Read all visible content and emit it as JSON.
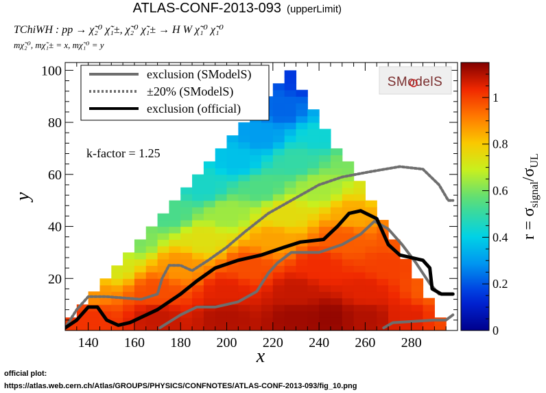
{
  "chart_data": {
    "type": "heatmap",
    "title": "ATLAS-CONF-2013-093",
    "title_suffix": "(upperLimit)",
    "process_lines": [
      "TChiWH : pp → χ̃₂⁰ χ̃₁±, χ̃₂⁰ χ̃₁± → H W χ̃₁⁰ χ̃₁⁰",
      "mχ̃₂⁰, mχ̃₁± = x, mχ̃₁⁰ = y"
    ],
    "xlabel": "x",
    "ylabel": "y",
    "zlabel": "r = σsignal/σUL",
    "xlim": [
      130,
      300
    ],
    "ylim": [
      0,
      103
    ],
    "zlim": [
      0,
      1.15
    ],
    "xticks": [
      140,
      160,
      180,
      200,
      220,
      240,
      260,
      280
    ],
    "yticks": [
      20,
      40,
      60,
      80,
      100
    ],
    "zticks": [
      0,
      0.2,
      0.4,
      0.6,
      0.8,
      1
    ],
    "zticklabels": [
      "0",
      "0.2",
      "0.4",
      "0.6",
      "0.8",
      "1"
    ],
    "grid": false,
    "annotation": "k-factor = 1.25",
    "logo": "SModelS",
    "legend": {
      "placement": "top-left",
      "entries": [
        {
          "label": "exclusion (SModelS)",
          "style": "solid",
          "color": "#6e6e6e"
        },
        {
          "label": "±20% (SModelS)",
          "style": "dotted",
          "color": "#6e6e6e"
        },
        {
          "label": "exclusion (official)",
          "style": "solid",
          "color": "#000000"
        }
      ]
    },
    "series": [
      {
        "name": "exclusion (SModelS)",
        "segments": [
          [
            [
              171,
              1
            ],
            [
              180,
              6
            ],
            [
              187,
              9
            ],
            [
              195,
              9
            ],
            [
              205,
              11
            ],
            [
              213,
              15
            ],
            [
              218,
              22
            ],
            [
              222,
              26
            ],
            [
              228,
              30
            ],
            [
              240,
              30
            ],
            [
              250,
              33
            ],
            [
              258,
              37
            ],
            [
              264,
              42
            ],
            [
              270,
              39
            ],
            [
              276,
              33
            ],
            [
              282,
              26
            ],
            [
              288,
              18
            ],
            [
              292,
              14
            ],
            [
              298,
              14
            ]
          ],
          [
            [
              268,
              1
            ],
            [
              272,
              3
            ],
            [
              290,
              4
            ],
            [
              295,
              4
            ],
            [
              298,
              6
            ]
          ]
        ]
      },
      {
        "name": "±20% (SModelS)",
        "segments": [
          [
            [
              130,
              1
            ],
            [
              135,
              8
            ],
            [
              140,
              13
            ],
            [
              148,
              13
            ],
            [
              163,
              12
            ],
            [
              170,
              14
            ],
            [
              172,
              20
            ],
            [
              175,
              25
            ],
            [
              180,
              25
            ],
            [
              185,
              23
            ],
            [
              192,
              27
            ],
            [
              200,
              32
            ],
            [
              208,
              38
            ],
            [
              218,
              45
            ],
            [
              230,
              51
            ],
            [
              240,
              56
            ],
            [
              250,
              59
            ],
            [
              262,
              61
            ],
            [
              275,
              63
            ],
            [
              285,
              62
            ],
            [
              292,
              56
            ],
            [
              296,
              50
            ],
            [
              298,
              50
            ]
          ]
        ]
      },
      {
        "name": "exclusion (official)",
        "segments": [
          [
            [
              130,
              1
            ],
            [
              135,
              4
            ],
            [
              140,
              9
            ],
            [
              144,
              9
            ],
            [
              148,
              4
            ],
            [
              153,
              2
            ],
            [
              158,
              3
            ],
            [
              170,
              8
            ],
            [
              180,
              14
            ],
            [
              187,
              19
            ],
            [
              195,
              24
            ],
            [
              205,
              27
            ],
            [
              215,
              29
            ],
            [
              225,
              32
            ],
            [
              232,
              34
            ],
            [
              242,
              35
            ],
            [
              248,
              40
            ],
            [
              253,
              45
            ],
            [
              258,
              46
            ],
            [
              265,
              43
            ],
            [
              270,
              33
            ],
            [
              275,
              29
            ],
            [
              285,
              27
            ],
            [
              288,
              24
            ],
            [
              289,
              16
            ],
            [
              293,
              14
            ],
            [
              298,
              14
            ]
          ]
        ]
      }
    ],
    "heatmap_points": [
      {
        "x": 140,
        "y": 5,
        "r": 1.02
      },
      {
        "x": 170,
        "y": 5,
        "r": 1.08
      },
      {
        "x": 200,
        "y": 5,
        "r": 1.1
      },
      {
        "x": 230,
        "y": 5,
        "r": 1.12
      },
      {
        "x": 245,
        "y": 5,
        "r": 1.13
      },
      {
        "x": 260,
        "y": 5,
        "r": 1.1
      },
      {
        "x": 280,
        "y": 5,
        "r": 1.05
      },
      {
        "x": 295,
        "y": 5,
        "r": 0.99
      },
      {
        "x": 140,
        "y": 15,
        "r": 0.88
      },
      {
        "x": 170,
        "y": 15,
        "r": 0.98
      },
      {
        "x": 200,
        "y": 15,
        "r": 1.05
      },
      {
        "x": 230,
        "y": 15,
        "r": 1.08
      },
      {
        "x": 260,
        "y": 15,
        "r": 1.05
      },
      {
        "x": 290,
        "y": 15,
        "r": 0.96
      },
      {
        "x": 150,
        "y": 25,
        "r": 0.72
      },
      {
        "x": 180,
        "y": 25,
        "r": 0.88
      },
      {
        "x": 210,
        "y": 25,
        "r": 0.98
      },
      {
        "x": 240,
        "y": 25,
        "r": 1.03
      },
      {
        "x": 270,
        "y": 25,
        "r": 1.0
      },
      {
        "x": 295,
        "y": 25,
        "r": 0.93
      },
      {
        "x": 160,
        "y": 35,
        "r": 0.6
      },
      {
        "x": 190,
        "y": 35,
        "r": 0.74
      },
      {
        "x": 220,
        "y": 35,
        "r": 0.86
      },
      {
        "x": 250,
        "y": 35,
        "r": 0.96
      },
      {
        "x": 275,
        "y": 35,
        "r": 0.97
      },
      {
        "x": 295,
        "y": 35,
        "r": 0.92
      },
      {
        "x": 175,
        "y": 45,
        "r": 0.54
      },
      {
        "x": 200,
        "y": 45,
        "r": 0.64
      },
      {
        "x": 225,
        "y": 45,
        "r": 0.75
      },
      {
        "x": 255,
        "y": 45,
        "r": 0.85
      },
      {
        "x": 280,
        "y": 45,
        "r": 0.9
      },
      {
        "x": 298,
        "y": 45,
        "r": 0.9
      },
      {
        "x": 190,
        "y": 55,
        "r": 0.45
      },
      {
        "x": 215,
        "y": 55,
        "r": 0.55
      },
      {
        "x": 240,
        "y": 55,
        "r": 0.65
      },
      {
        "x": 265,
        "y": 55,
        "r": 0.74
      },
      {
        "x": 285,
        "y": 55,
        "r": 0.78
      },
      {
        "x": 205,
        "y": 65,
        "r": 0.37
      },
      {
        "x": 230,
        "y": 65,
        "r": 0.5
      },
      {
        "x": 255,
        "y": 65,
        "r": 0.6
      },
      {
        "x": 270,
        "y": 65,
        "r": 0.65
      },
      {
        "x": 215,
        "y": 75,
        "r": 0.3
      },
      {
        "x": 240,
        "y": 75,
        "r": 0.43
      },
      {
        "x": 260,
        "y": 75,
        "r": 0.53
      },
      {
        "x": 225,
        "y": 85,
        "r": 0.22
      },
      {
        "x": 245,
        "y": 85,
        "r": 0.33
      },
      {
        "x": 255,
        "y": 85,
        "r": 0.4
      },
      {
        "x": 235,
        "y": 95,
        "r": 0.16
      },
      {
        "x": 245,
        "y": 100,
        "r": 0.05
      }
    ]
  },
  "footer": {
    "line1": "official plot:",
    "line2": "https://atlas.web.cern.ch/Atlas/GROUPS/PHYSICS/CONFNOTES/ATLAS-CONF-2013-093/fig_10.png"
  }
}
